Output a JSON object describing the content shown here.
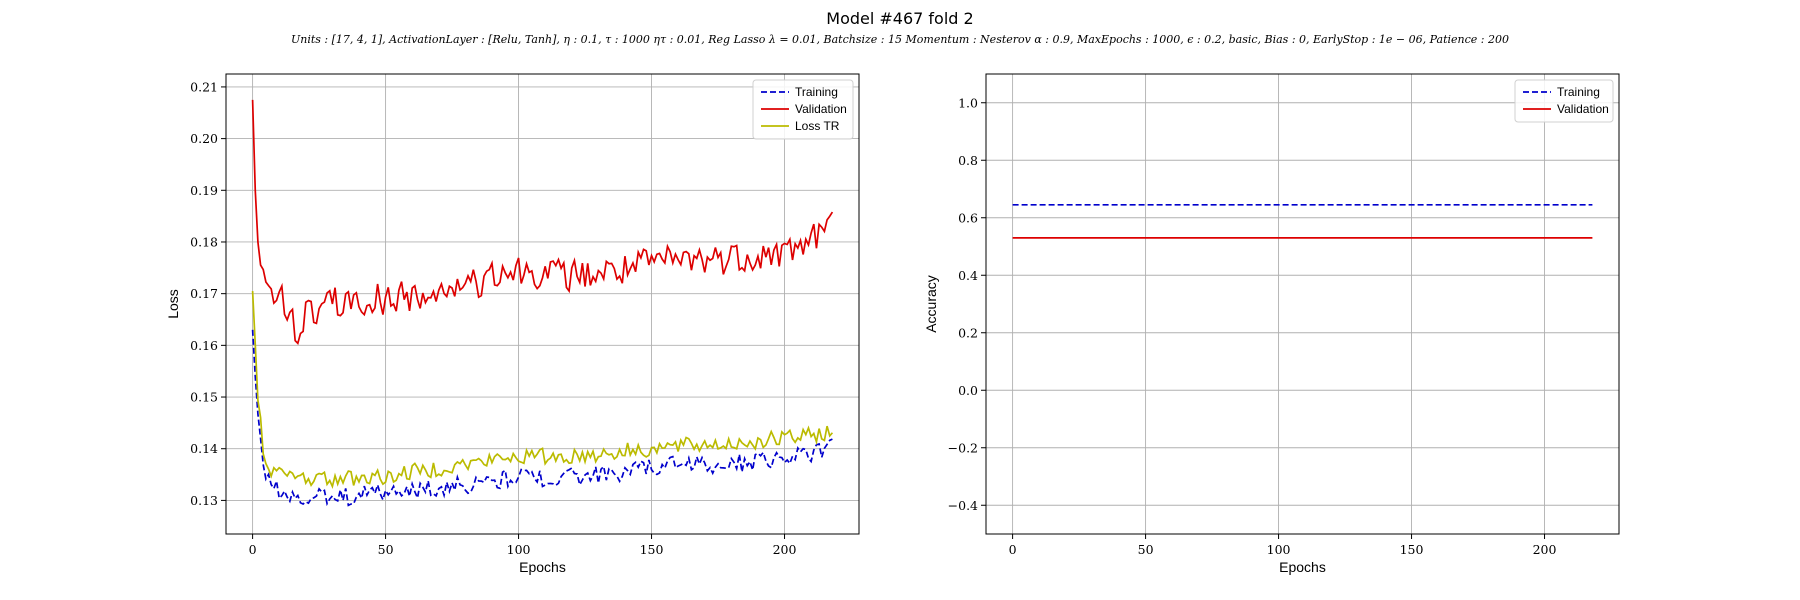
{
  "figure": {
    "title": "Model #467 fold 2",
    "subtitle": "Units : [17, 4, 1], ActivationLayer : [Relu, Tanh], η : 0.1, τ : 1000 ητ : 0.01, Reg Lasso λ = 0.01, Batchsize : 15 Momentum : Nesterov α : 0.9, MaxEpochs : 1000, ϵ : 0.2, basic, Bias : 0, EarlyStop : 1e − 06, Patience : 200"
  },
  "chart_data": [
    {
      "type": "line",
      "xlabel": "Epochs",
      "ylabel": "Loss",
      "xlim": [
        -10,
        228
      ],
      "ylim": [
        0.1235,
        0.2125
      ],
      "xticks": [
        0,
        50,
        100,
        150,
        200
      ],
      "yticks": [
        0.13,
        0.14,
        0.15,
        0.16,
        0.17,
        0.18,
        0.19,
        0.2,
        0.21
      ],
      "ytick_labels": [
        "0.13",
        "0.14",
        "0.15",
        "0.16",
        "0.17",
        "0.18",
        "0.19",
        "0.20",
        "0.21"
      ],
      "grid": true,
      "legend_position": "top-right",
      "series": [
        {
          "name": "Training",
          "color": "#0000cc",
          "style": "dashed",
          "anchors_x": [
            0,
            2,
            4,
            6,
            8,
            10,
            15,
            20,
            30,
            40,
            50,
            60,
            80,
            100,
            120,
            140,
            150,
            160,
            180,
            200,
            210,
            218
          ],
          "anchors_y": [
            0.163,
            0.145,
            0.137,
            0.134,
            0.1325,
            0.132,
            0.131,
            0.1305,
            0.1305,
            0.131,
            0.1315,
            0.132,
            0.133,
            0.1345,
            0.1345,
            0.1355,
            0.1365,
            0.137,
            0.137,
            0.1385,
            0.139,
            0.1405
          ],
          "noise": 0.0018
        },
        {
          "name": "Validation",
          "color": "#dd0000",
          "style": "solid",
          "anchors_x": [
            0,
            1,
            2,
            3,
            5,
            8,
            10,
            15,
            17,
            20,
            30,
            40,
            50,
            60,
            80,
            100,
            120,
            140,
            150,
            160,
            180,
            200,
            210,
            218
          ],
          "anchors_y": [
            0.2075,
            0.19,
            0.18,
            0.1785,
            0.171,
            0.169,
            0.1695,
            0.166,
            0.161,
            0.166,
            0.168,
            0.1685,
            0.169,
            0.1695,
            0.171,
            0.1745,
            0.1735,
            0.1745,
            0.176,
            0.1765,
            0.177,
            0.178,
            0.1805,
            0.1835
          ],
          "noise": 0.0032
        },
        {
          "name": "Loss TR",
          "color": "#bbbb00",
          "style": "solid",
          "anchors_x": [
            0,
            2,
            4,
            6,
            8,
            10,
            15,
            20,
            30,
            40,
            50,
            60,
            80,
            100,
            120,
            140,
            150,
            160,
            180,
            200,
            210,
            218
          ],
          "anchors_y": [
            0.1705,
            0.15,
            0.14,
            0.137,
            0.1355,
            0.135,
            0.1345,
            0.1345,
            0.134,
            0.1345,
            0.1345,
            0.1355,
            0.137,
            0.1385,
            0.1385,
            0.1395,
            0.14,
            0.1405,
            0.141,
            0.142,
            0.1425,
            0.1435
          ],
          "noise": 0.0016
        }
      ]
    },
    {
      "type": "line",
      "xlabel": "Epochs",
      "ylabel": "Accuracy",
      "xlim": [
        -10,
        228
      ],
      "ylim": [
        -0.5,
        1.1
      ],
      "xticks": [
        0,
        50,
        100,
        150,
        200
      ],
      "yticks": [
        -0.4,
        -0.2,
        0.0,
        0.2,
        0.4,
        0.6,
        0.8,
        1.0
      ],
      "ytick_labels": [
        "−0.4",
        "−0.2",
        "0.0",
        "0.2",
        "0.4",
        "0.6",
        "0.8",
        "1.0"
      ],
      "grid": true,
      "legend_position": "top-right",
      "series": [
        {
          "name": "Training",
          "color": "#0000cc",
          "style": "dashed",
          "x": [
            0,
            218
          ],
          "y": [
            0.645,
            0.645
          ]
        },
        {
          "name": "Validation",
          "color": "#dd0000",
          "style": "solid",
          "x": [
            0,
            218
          ],
          "y": [
            0.53,
            0.53
          ]
        }
      ]
    }
  ]
}
